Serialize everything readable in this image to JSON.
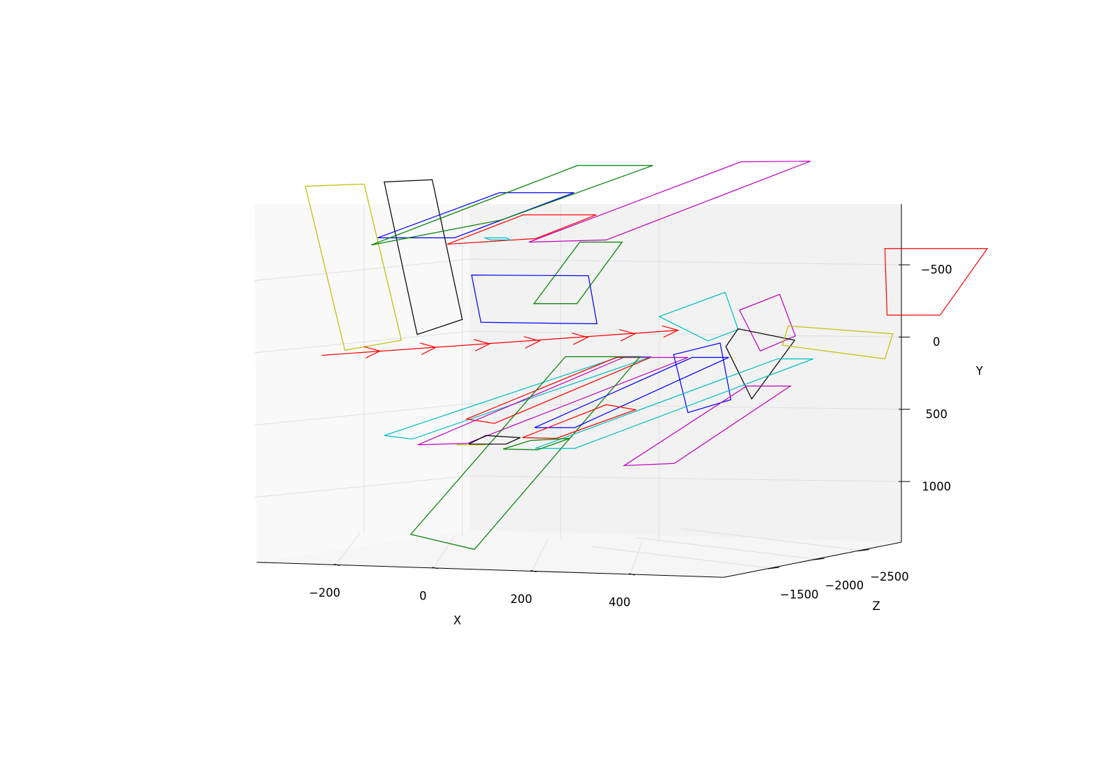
{
  "chart_data": {
    "type": "3d-line",
    "xlabel": "X",
    "ylabel": "Y",
    "zlabel": "Z",
    "xlim": [
      -360,
      590
    ],
    "ylim": [
      1420,
      -920
    ],
    "zlim": [
      -980,
      -2950
    ],
    "xticks": [
      {
        "value": -200,
        "label": "−200"
      },
      0,
      200,
      400
    ],
    "yticks": [
      {
        "value": -500,
        "label": "−500"
      },
      0,
      500,
      1000
    ],
    "zticks": [
      {
        "value": -1500,
        "label": "−1500"
      },
      {
        "value": -2000,
        "label": "−2000"
      },
      {
        "value": -2500,
        "label": "−2500"
      }
    ],
    "grid": true
  }
}
